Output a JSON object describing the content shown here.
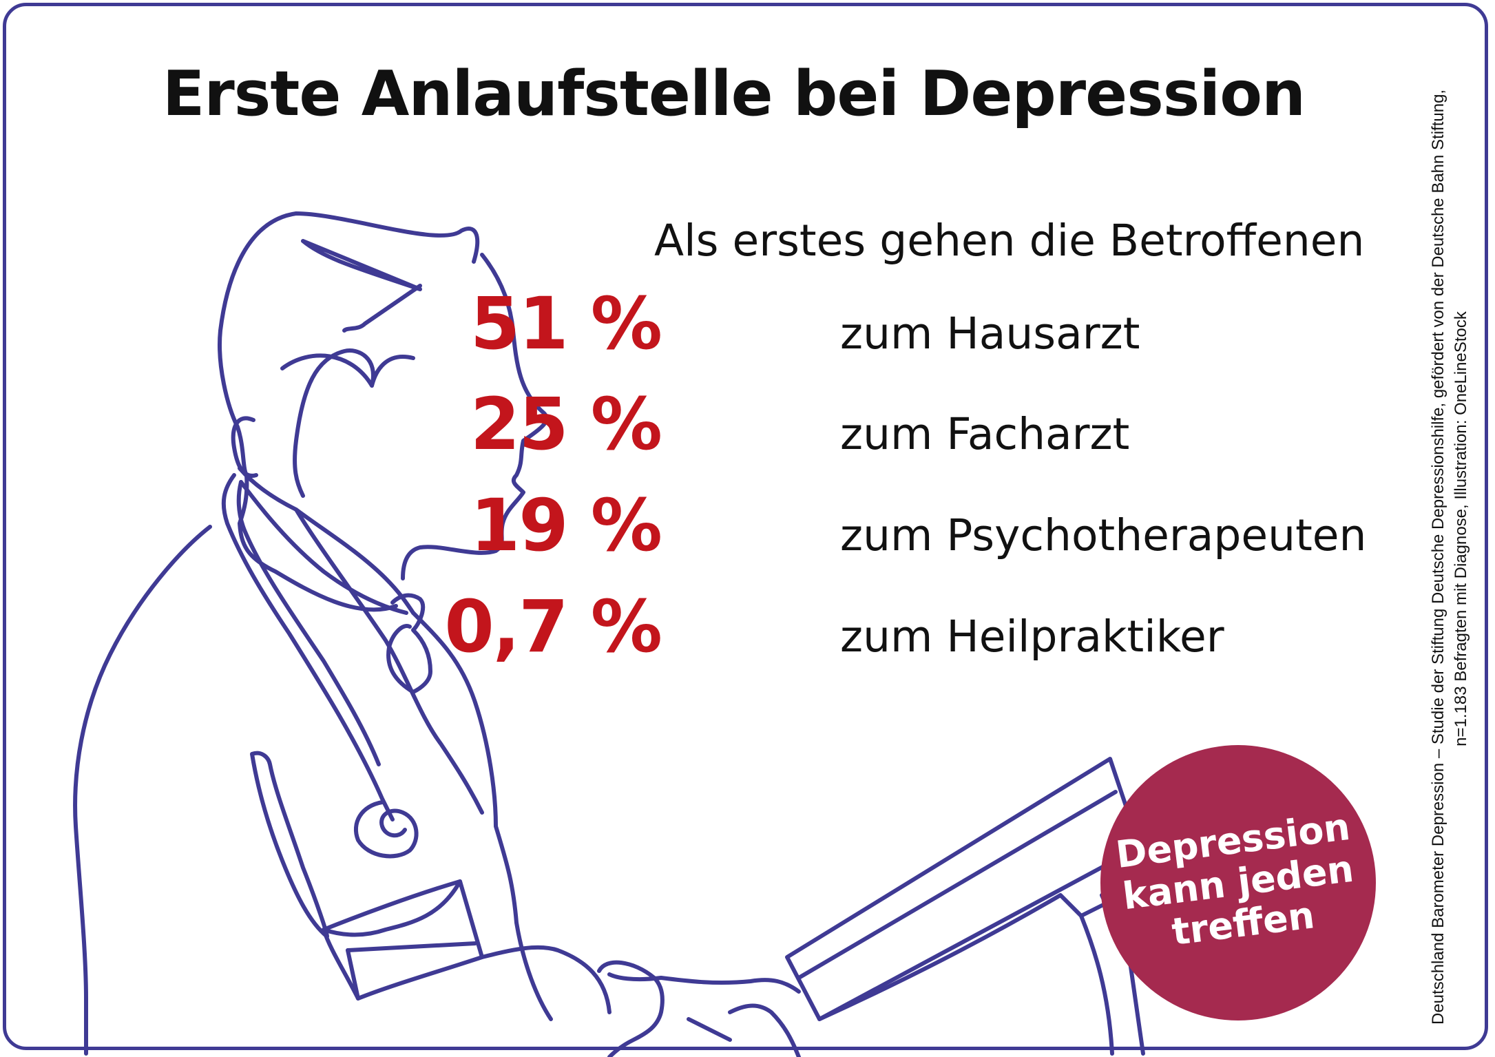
{
  "title": "Erste Anlaufstelle bei Depression",
  "intro": "Als erstes gehen die Betroffenen",
  "stats": [
    {
      "value": "51 %",
      "label": "zum Hausarzt"
    },
    {
      "value": "25 %",
      "label": "zum Facharzt"
    },
    {
      "value": "19 %",
      "label": "zum Psychotherapeuten"
    },
    {
      "value": "0,7 %",
      "label": "zum Heilpraktiker"
    }
  ],
  "badge": {
    "lines": [
      "Depression",
      "kann jeden",
      "treffen"
    ],
    "color": "#a52a4f"
  },
  "source": {
    "line1": "Deutschland Barometer Depression – Studie der Stiftung Deutsche Depressionshilfe, gefördert von der Deutsche Bahn Stiftung,",
    "line2": "n=1.183 Befragten mit Diagnose, Illustration: OneLineStock"
  },
  "colors": {
    "frame": "#3f3a94",
    "accent_red": "#c3151c",
    "line_art": "#3f3a94"
  },
  "illustration": {
    "icon": "doctor-line-art-icon"
  }
}
